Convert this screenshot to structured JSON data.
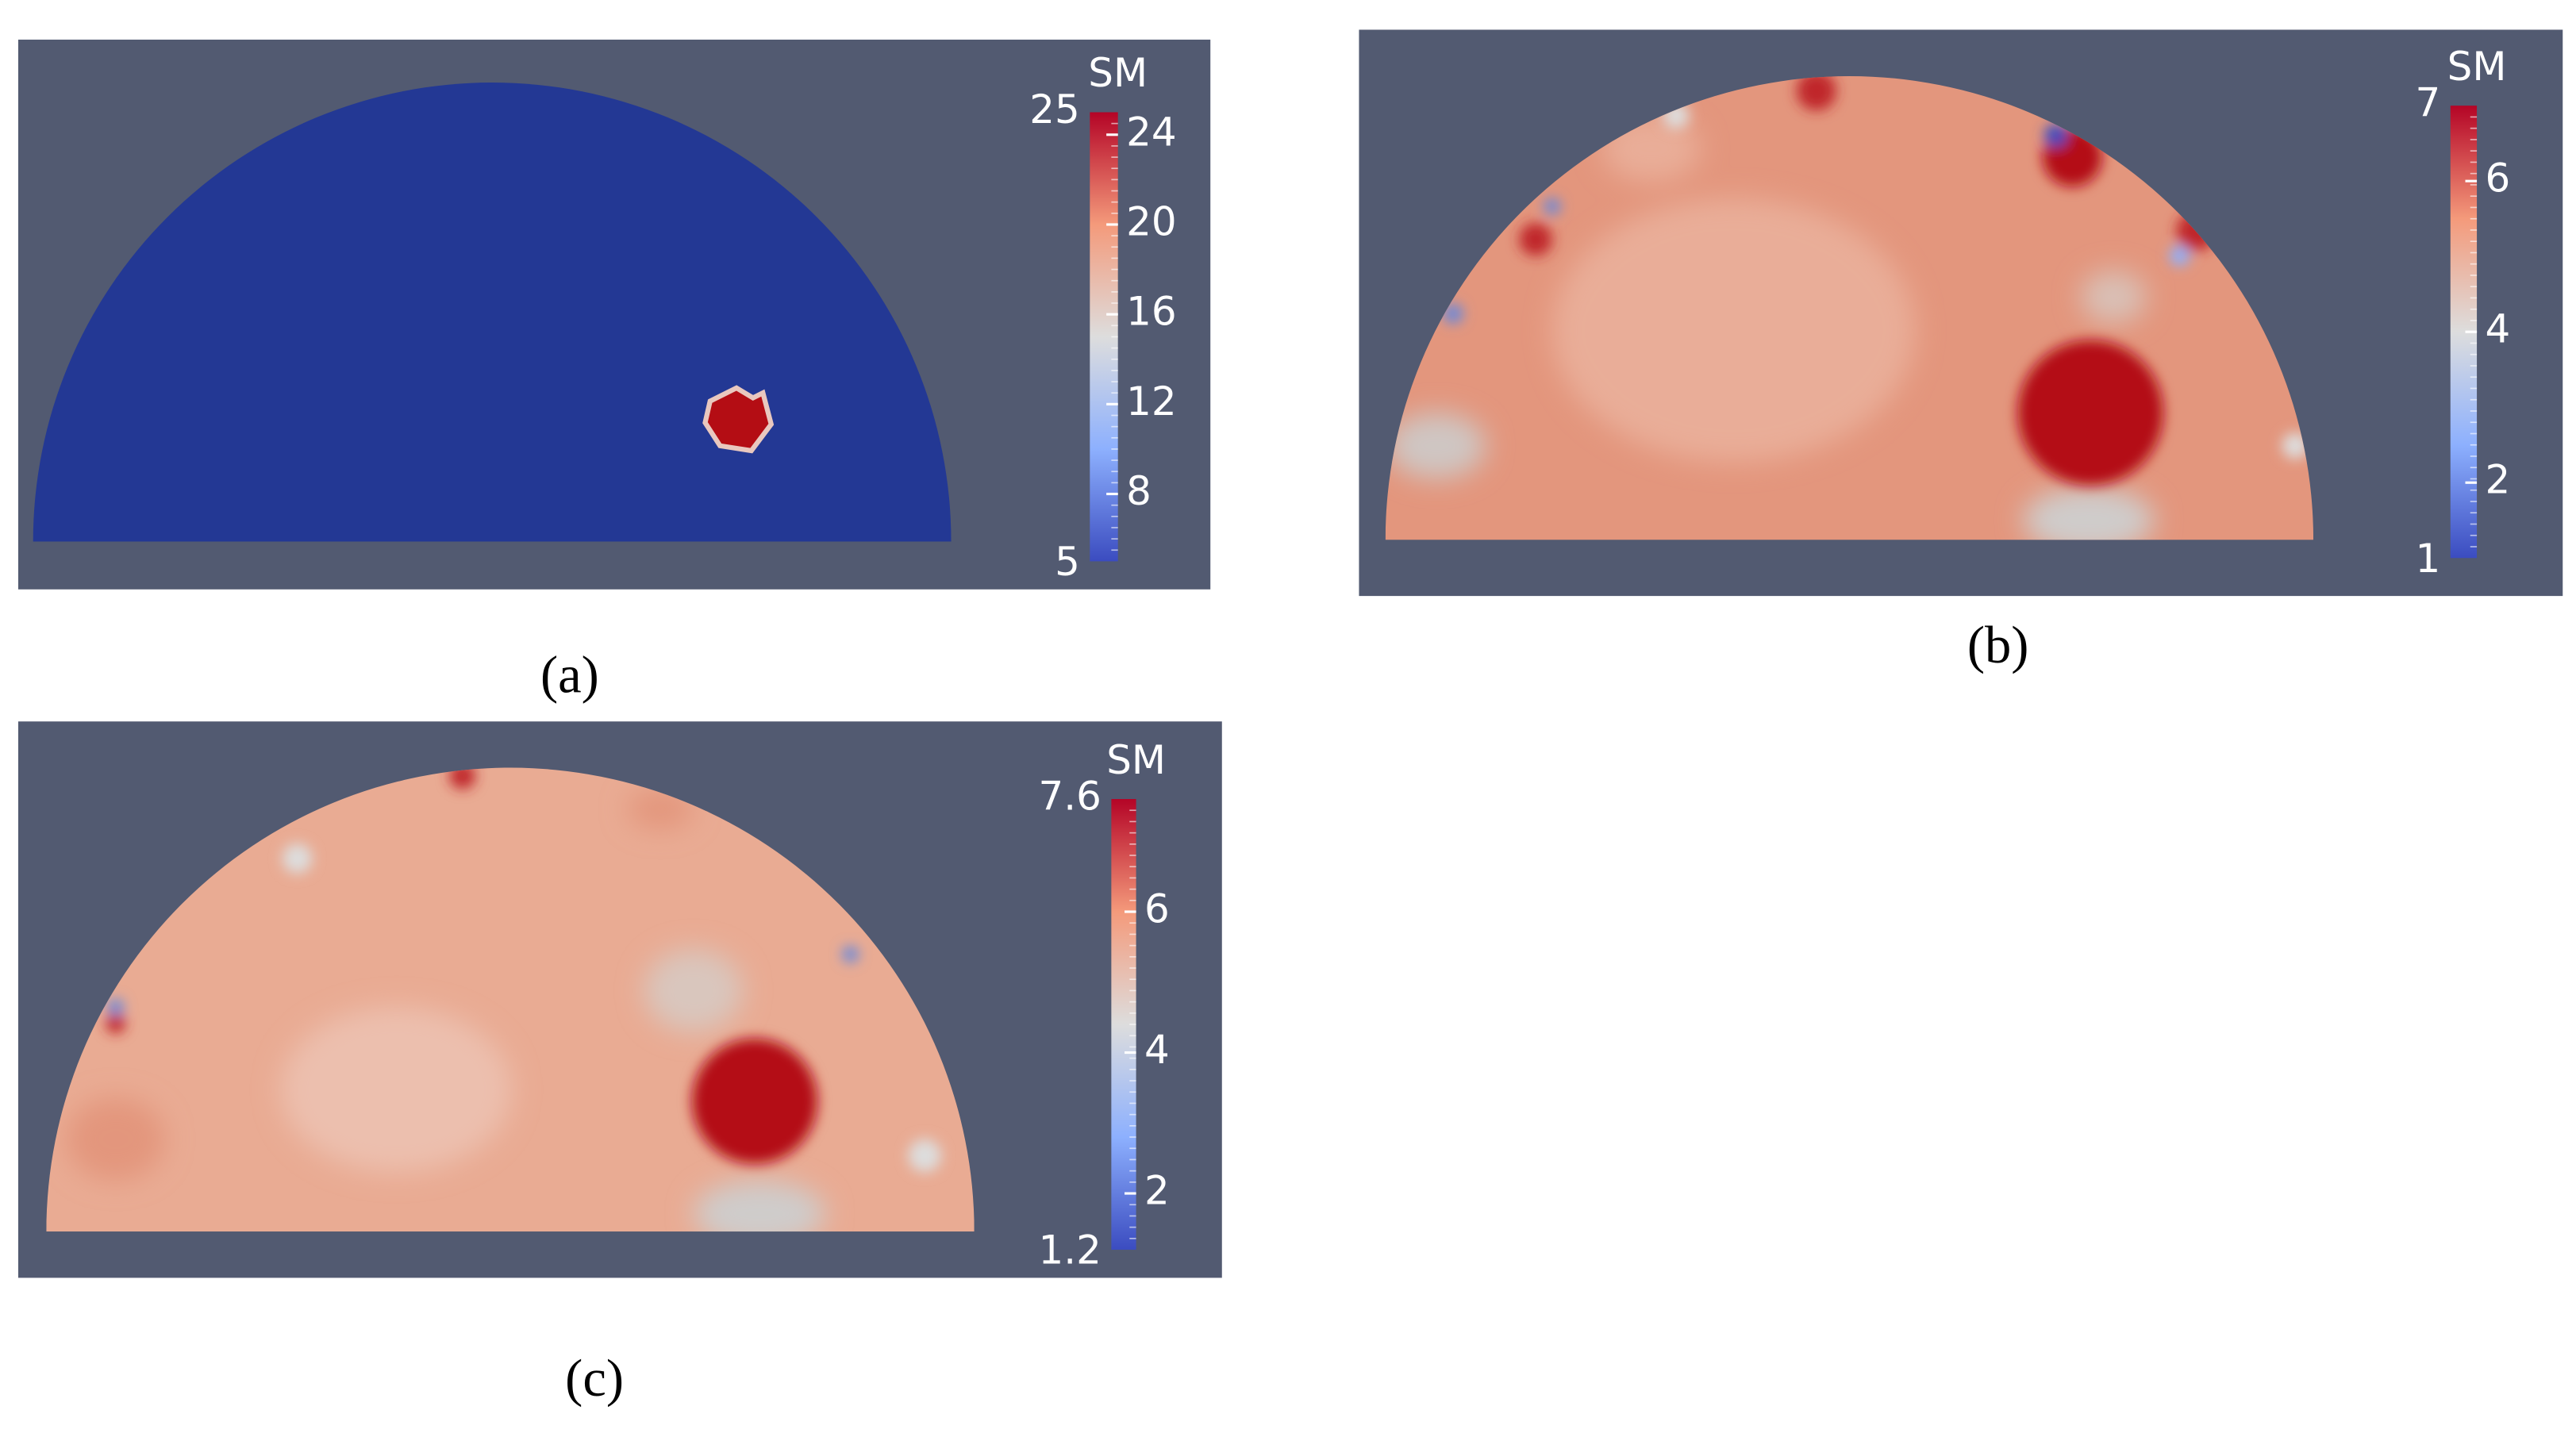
{
  "panels": [
    {
      "caption": "(a)",
      "colorbar": {
        "title": "SM",
        "range": [
          5,
          25
        ],
        "ticks": [
          8,
          12,
          16,
          20,
          24
        ]
      }
    },
    {
      "caption": "(b)",
      "colorbar": {
        "title": "SM",
        "range": [
          1,
          7
        ],
        "ticks": [
          2,
          4,
          6
        ]
      }
    },
    {
      "caption": "(c)",
      "colorbar": {
        "title": "SM",
        "range": [
          1.2,
          7.6
        ],
        "ticks": [
          2,
          4,
          6
        ]
      }
    }
  ]
}
